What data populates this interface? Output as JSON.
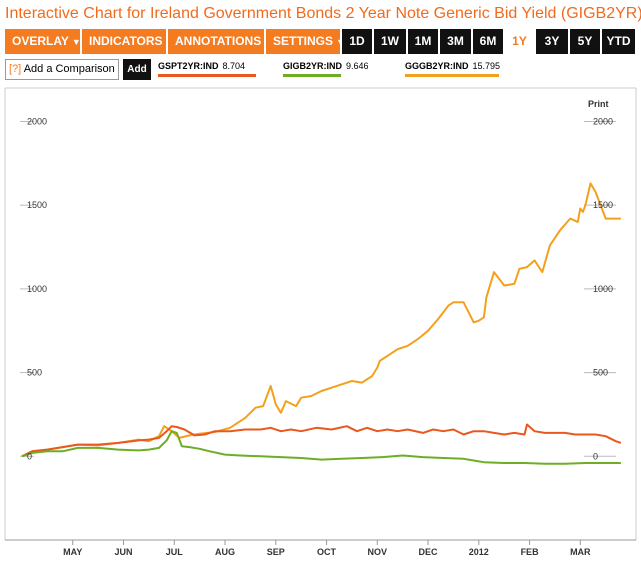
{
  "title": "Interactive Chart for Ireland Government Bonds 2 Year Note Generic Bid Yield (GIGB2YR)",
  "toolbar": {
    "menus": [
      {
        "label": "OVERLAY"
      },
      {
        "label": "INDICATORS"
      },
      {
        "label": "ANNOTATIONS"
      },
      {
        "label": "SETTINGS"
      }
    ],
    "ranges": [
      "1D",
      "1W",
      "1M",
      "3M",
      "6M",
      "1Y",
      "3Y",
      "5Y",
      "YTD"
    ],
    "active_range": "1Y"
  },
  "compare": {
    "help_mark": "[?]",
    "input_label": "Add a Comparison",
    "add_label": "Add"
  },
  "legend": [
    {
      "name": "GSPT2YR:IND",
      "value": "8.704",
      "color": "#e8581f"
    },
    {
      "name": "GIGB2YR:IND",
      "value": "9.646",
      "color": "#6dae24"
    },
    {
      "name": "GGGB2YR:IND",
      "value": "15.795",
      "color": "#f4a01c"
    }
  ],
  "print_label": "Print",
  "chart_data": {
    "type": "line",
    "y_ticks": [
      0,
      500,
      1000,
      1500,
      2000
    ],
    "ylim": [
      -500,
      2200
    ],
    "x_tick_labels": [
      "MAY",
      "JUN",
      "JUL",
      "AUG",
      "SEP",
      "OCT",
      "NOV",
      "DEC",
      "2012",
      "FEB",
      "MAR"
    ],
    "x_tick_positions": [
      0.5,
      1.5,
      2.5,
      3.5,
      4.5,
      5.5,
      6.5,
      7.5,
      8.5,
      9.5,
      10.5
    ],
    "xlim": [
      -0.5,
      11.4
    ],
    "series": [
      {
        "name": "GGGB2YR:IND",
        "color": "#f4a01c",
        "x": [
          -0.5,
          -0.3,
          0,
          0.3,
          0.6,
          1,
          1.4,
          1.8,
          2,
          2.2,
          2.3,
          2.45,
          2.6,
          2.8,
          3,
          3.3,
          3.6,
          3.9,
          4.1,
          4.25,
          4.4,
          4.5,
          4.6,
          4.7,
          4.9,
          5,
          5.2,
          5.4,
          5.6,
          5.8,
          6,
          6.2,
          6.4,
          6.5,
          6.55,
          6.7,
          6.9,
          7.1,
          7.3,
          7.5,
          7.7,
          7.85,
          7.9,
          8.0,
          8.2,
          8.4,
          8.5,
          8.6,
          8.65,
          8.8,
          9.0,
          9.2,
          9.3,
          9.45,
          9.6,
          9.75,
          9.9,
          10.1,
          10.3,
          10.45,
          10.5,
          10.55,
          10.6,
          10.7,
          10.8,
          11.0,
          11.3
        ],
        "values": [
          0,
          30,
          40,
          55,
          70,
          65,
          80,
          100,
          90,
          120,
          180,
          150,
          110,
          125,
          135,
          145,
          170,
          230,
          290,
          300,
          420,
          310,
          260,
          330,
          300,
          350,
          360,
          390,
          410,
          430,
          450,
          440,
          480,
          530,
          570,
          600,
          640,
          660,
          700,
          750,
          820,
          880,
          900,
          920,
          920,
          800,
          810,
          830,
          950,
          1100,
          1020,
          1030,
          1120,
          1130,
          1170,
          1100,
          1260,
          1350,
          1420,
          1400,
          1480,
          1460,
          1500,
          1630,
          1580,
          1420,
          1420
        ]
      },
      {
        "name": "GSPT2YR:IND",
        "color": "#e8581f",
        "x": [
          -0.5,
          -0.3,
          0,
          0.3,
          0.6,
          1,
          1.4,
          1.8,
          2,
          2.2,
          2.35,
          2.45,
          2.55,
          2.7,
          2.9,
          3.1,
          3.3,
          3.6,
          3.9,
          4.2,
          4.4,
          4.6,
          4.8,
          5.0,
          5.3,
          5.6,
          5.9,
          6.1,
          6.3,
          6.5,
          6.7,
          6.9,
          7.1,
          7.4,
          7.6,
          7.8,
          8,
          8.2,
          8.4,
          8.6,
          8.8,
          9.0,
          9.2,
          9.4,
          9.45,
          9.6,
          9.8,
          10,
          10.2,
          10.4,
          10.6,
          10.8,
          11,
          11.2,
          11.3
        ],
        "values": [
          0,
          30,
          40,
          55,
          70,
          70,
          80,
          95,
          100,
          110,
          150,
          180,
          175,
          160,
          125,
          130,
          150,
          150,
          160,
          160,
          170,
          150,
          160,
          150,
          170,
          160,
          180,
          150,
          170,
          150,
          160,
          150,
          160,
          140,
          160,
          150,
          160,
          130,
          150,
          150,
          140,
          130,
          140,
          130,
          190,
          150,
          140,
          140,
          140,
          130,
          130,
          130,
          120,
          90,
          80
        ]
      },
      {
        "name": "GIGB2YR:IND",
        "color": "#6dae24",
        "x": [
          -0.5,
          -0.3,
          0,
          0.3,
          0.6,
          1,
          1.4,
          1.8,
          2,
          2.2,
          2.35,
          2.45,
          2.55,
          2.65,
          2.8,
          3,
          3.2,
          3.5,
          3.8,
          4.2,
          4.6,
          5,
          5.4,
          5.8,
          6.2,
          6.6,
          7,
          7.4,
          7.8,
          8.2,
          8.4,
          8.6,
          9,
          9.4,
          9.8,
          10.2,
          10.6,
          11,
          11.3
        ],
        "values": [
          0,
          20,
          30,
          30,
          50,
          50,
          40,
          35,
          40,
          50,
          95,
          150,
          140,
          60,
          55,
          45,
          30,
          10,
          5,
          0,
          -5,
          -10,
          -20,
          -15,
          -10,
          -5,
          5,
          -5,
          -10,
          -15,
          -25,
          -35,
          -40,
          -40,
          -45,
          -45,
          -40,
          -40,
          -40
        ]
      }
    ]
  }
}
